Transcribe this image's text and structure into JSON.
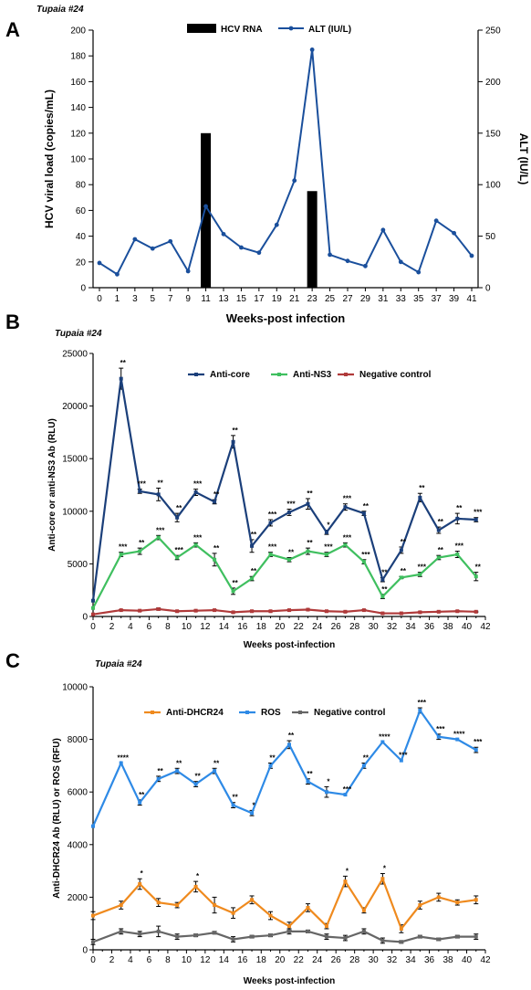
{
  "chart_data": [
    {
      "panel": "A",
      "subject": "Tupaia #24",
      "type": "bar+line",
      "xlabel": "Weeks-post infection",
      "x_ticks": [
        0,
        1,
        3,
        5,
        7,
        9,
        11,
        13,
        15,
        17,
        19,
        21,
        23,
        25,
        27,
        29,
        31,
        33,
        35,
        37,
        39,
        41
      ],
      "ylabel_left": "HCV viral load (copies/mL)",
      "ylim_left": [
        0,
        200
      ],
      "yticks_left": [
        0,
        20,
        40,
        60,
        80,
        100,
        120,
        140,
        160,
        180,
        200
      ],
      "ylabel_right": "ALT (IU/L)",
      "ylim_right": [
        0,
        250
      ],
      "yticks_right": [
        0,
        50,
        100,
        150,
        200,
        250
      ],
      "legend": {
        "position": "top-center",
        "entries": [
          "HCV RNA",
          "ALT (IU/L)"
        ]
      },
      "bars": {
        "name": "HCV RNA",
        "color": "#000000",
        "x": [
          11,
          23
        ],
        "values": [
          120,
          75
        ]
      },
      "series": [
        {
          "name": "ALT (IU/L)",
          "axis": "right",
          "color": "#1a4f9c",
          "x": [
            0,
            1,
            3,
            5,
            7,
            9,
            11,
            13,
            15,
            17,
            19,
            21,
            23,
            25,
            27,
            29,
            31,
            33,
            35,
            37,
            39,
            41
          ],
          "values": [
            24,
            13,
            47,
            38,
            45,
            16,
            79,
            52,
            39,
            34,
            61,
            104,
            231,
            32,
            26,
            21,
            56,
            25,
            15,
            65,
            53,
            31
          ]
        }
      ]
    },
    {
      "panel": "B",
      "subject": "Tupaia #24",
      "type": "line",
      "xlabel": "Weeks post-infection",
      "ylabel": "Anti-core or anti-NS3 Ab (RLU)",
      "xlim": [
        0,
        42
      ],
      "x_ticks": [
        0,
        2,
        4,
        6,
        8,
        10,
        12,
        14,
        16,
        18,
        20,
        22,
        24,
        26,
        28,
        30,
        32,
        34,
        36,
        38,
        40,
        42
      ],
      "ylim": [
        0,
        25000
      ],
      "yticks": [
        0,
        5000,
        10000,
        15000,
        20000,
        25000
      ],
      "legend": {
        "position": "top-right",
        "entries": [
          "Anti-core",
          "Anti-NS3",
          "Negative control"
        ]
      },
      "series": [
        {
          "name": "Anti-core",
          "color": "#1b3f7a",
          "x": [
            0,
            3,
            5,
            7,
            9,
            11,
            13,
            15,
            17,
            19,
            21,
            23,
            25,
            27,
            29,
            31,
            33,
            35,
            37,
            39,
            41
          ],
          "values": [
            1500,
            22600,
            11900,
            11600,
            9400,
            11800,
            10900,
            16600,
            6700,
            8900,
            9900,
            10700,
            8000,
            10400,
            9800,
            3500,
            6300,
            11300,
            8200,
            9300,
            9200
          ],
          "err": [
            0,
            1000,
            200,
            600,
            400,
            300,
            200,
            600,
            600,
            300,
            300,
            500,
            200,
            300,
            200,
            200,
            300,
            400,
            300,
            500,
            200
          ],
          "stars": [
            "",
            "**",
            "***",
            "**",
            "**",
            "***",
            "**",
            "**",
            "**",
            "***",
            "***",
            "**",
            "*",
            "***",
            "**",
            "**",
            "**",
            "**",
            "**",
            "**",
            "***"
          ]
        },
        {
          "name": "Anti-NS3",
          "color": "#3fbf5f",
          "x": [
            0,
            3,
            5,
            7,
            9,
            11,
            13,
            15,
            17,
            19,
            21,
            23,
            25,
            27,
            29,
            31,
            33,
            35,
            37,
            39,
            41
          ],
          "values": [
            800,
            5900,
            6200,
            7500,
            5600,
            6800,
            5400,
            2400,
            3600,
            5900,
            5400,
            6200,
            5900,
            6800,
            5200,
            1900,
            3700,
            4000,
            5600,
            5900,
            3800
          ],
          "err": [
            0,
            200,
            300,
            200,
            200,
            200,
            600,
            300,
            200,
            200,
            200,
            300,
            200,
            200,
            200,
            200,
            100,
            200,
            200,
            300,
            400
          ],
          "stars": [
            "",
            "***",
            "**",
            "***",
            "***",
            "***",
            "**",
            "**",
            "**",
            "***",
            "**",
            "**",
            "***",
            "***",
            "***",
            "**",
            "**",
            "***",
            "**",
            "***",
            "**"
          ]
        },
        {
          "name": "Negative control",
          "color": "#b03a3a",
          "x": [
            0,
            3,
            5,
            7,
            9,
            11,
            13,
            15,
            17,
            19,
            21,
            23,
            25,
            27,
            29,
            31,
            33,
            35,
            37,
            39,
            41
          ],
          "values": [
            200,
            600,
            550,
            700,
            500,
            550,
            600,
            400,
            500,
            500,
            600,
            650,
            500,
            450,
            600,
            300,
            300,
            400,
            450,
            500,
            450
          ],
          "err": [
            0,
            50,
            50,
            100,
            50,
            50,
            50,
            50,
            50,
            50,
            50,
            50,
            50,
            50,
            50,
            50,
            50,
            50,
            50,
            50,
            50
          ]
        }
      ]
    },
    {
      "panel": "C",
      "subject": "Tupaia #24",
      "type": "line",
      "xlabel": "Weeks post-infection",
      "ylabel": "Anti-DHCR24 Ab (RLU) or ROS (RFU)",
      "xlim": [
        0,
        42
      ],
      "x_ticks": [
        0,
        2,
        4,
        6,
        8,
        10,
        12,
        14,
        16,
        18,
        20,
        22,
        24,
        26,
        28,
        30,
        32,
        34,
        36,
        38,
        40,
        42
      ],
      "ylim": [
        0,
        10000
      ],
      "yticks": [
        0,
        2000,
        4000,
        6000,
        8000,
        10000
      ],
      "legend": {
        "position": "top-center",
        "entries": [
          "Anti-DHCR24",
          "ROS",
          "Negative control"
        ]
      },
      "series": [
        {
          "name": "Anti-DHCR24",
          "color": "#ef8a1e",
          "x": [
            0,
            3,
            5,
            7,
            9,
            11,
            13,
            15,
            17,
            19,
            21,
            23,
            25,
            27,
            29,
            31,
            33,
            35,
            37,
            39,
            41
          ],
          "values": [
            1300,
            1700,
            2500,
            1800,
            1700,
            2400,
            1700,
            1400,
            1900,
            1300,
            900,
            1600,
            900,
            2600,
            1500,
            2700,
            800,
            1700,
            2000,
            1800,
            1900
          ],
          "err": [
            150,
            150,
            200,
            150,
            100,
            200,
            300,
            200,
            150,
            150,
            150,
            150,
            100,
            200,
            100,
            200,
            150,
            150,
            150,
            100,
            150
          ],
          "stars": [
            "",
            "",
            "*",
            "",
            "",
            "*",
            "",
            "",
            "",
            "",
            "",
            "",
            "",
            "*",
            "",
            "*",
            "",
            "",
            "",
            "",
            ""
          ]
        },
        {
          "name": "ROS",
          "color": "#2e8ae6",
          "x": [
            0,
            3,
            5,
            7,
            9,
            11,
            13,
            15,
            17,
            19,
            21,
            23,
            25,
            27,
            29,
            31,
            33,
            35,
            37,
            39,
            41
          ],
          "values": [
            4700,
            7100,
            5600,
            6500,
            6800,
            6300,
            6800,
            5500,
            5200,
            7000,
            7800,
            6400,
            6000,
            5900,
            7000,
            7900,
            7200,
            9100,
            8100,
            8000,
            7600
          ],
          "err": [
            0,
            0,
            100,
            100,
            100,
            100,
            100,
            100,
            100,
            100,
            150,
            100,
            200,
            0,
            100,
            0,
            0,
            100,
            100,
            0,
            100
          ],
          "stars": [
            "",
            "****",
            "**",
            "**",
            "**",
            "**",
            "**",
            "**",
            "*",
            "**",
            "**",
            "**",
            "*",
            "***",
            "**",
            "****",
            "***",
            "***",
            "***",
            "****",
            "***"
          ]
        },
        {
          "name": "Negative control",
          "color": "#666666",
          "x": [
            0,
            3,
            5,
            7,
            9,
            11,
            13,
            15,
            17,
            19,
            21,
            23,
            25,
            27,
            29,
            31,
            33,
            35,
            37,
            39,
            41
          ],
          "values": [
            300,
            700,
            600,
            700,
            500,
            550,
            650,
            400,
            500,
            550,
            700,
            700,
            500,
            450,
            700,
            350,
            300,
            500,
            400,
            500,
            500
          ],
          "err": [
            100,
            100,
            100,
            200,
            100,
            50,
            50,
            100,
            50,
            50,
            100,
            50,
            100,
            100,
            100,
            100,
            50,
            50,
            50,
            50,
            100
          ]
        }
      ]
    }
  ]
}
